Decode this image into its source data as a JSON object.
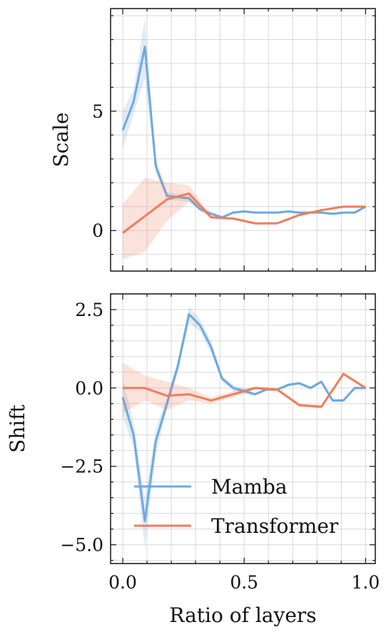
{
  "colors": {
    "mamba": "#6fa8dc",
    "transformer": "#ef7d5c",
    "grid": "#d9d9d9",
    "axes": "#222222"
  },
  "chart_data": [
    {
      "type": "line",
      "title": "",
      "xlabel": "",
      "ylabel": "Scale",
      "xlim": [
        -0.05,
        1.04
      ],
      "ylim": [
        -1.7,
        9.3
      ],
      "xticks": [
        0.0,
        0.5,
        1.0
      ],
      "yticks": [
        0,
        5
      ],
      "ytick_labels": [
        "0",
        "5"
      ],
      "grid": true,
      "series": [
        {
          "name": "Mamba",
          "color_key": "mamba",
          "x": [
            0.0,
            0.045,
            0.091,
            0.136,
            0.182,
            0.227,
            0.273,
            0.318,
            0.364,
            0.409,
            0.455,
            0.5,
            0.545,
            0.591,
            0.636,
            0.682,
            0.727,
            0.773,
            0.818,
            0.864,
            0.909,
            0.955,
            1.0
          ],
          "y": [
            4.2,
            5.4,
            7.7,
            2.7,
            1.45,
            1.4,
            1.35,
            0.9,
            0.7,
            0.55,
            0.75,
            0.8,
            0.75,
            0.75,
            0.75,
            0.8,
            0.75,
            0.75,
            0.75,
            0.7,
            0.75,
            0.75,
            1.0
          ],
          "lower": [
            3.4,
            4.9,
            6.4,
            2.4,
            1.3,
            1.25,
            1.2,
            0.8,
            0.6,
            0.5,
            0.7,
            0.75,
            0.7,
            0.7,
            0.7,
            0.75,
            0.7,
            0.7,
            0.7,
            0.65,
            0.7,
            0.7,
            0.95
          ],
          "upper": [
            5.0,
            5.9,
            8.9,
            3.0,
            1.6,
            1.55,
            1.5,
            1.0,
            0.8,
            0.6,
            0.8,
            0.85,
            0.8,
            0.8,
            0.8,
            0.85,
            0.8,
            0.8,
            0.8,
            0.75,
            0.8,
            0.8,
            1.05
          ]
        },
        {
          "name": "Transformer",
          "color_key": "transformer",
          "x": [
            0.0,
            0.091,
            0.182,
            0.273,
            0.364,
            0.455,
            0.545,
            0.636,
            0.727,
            0.818,
            0.909,
            1.0
          ],
          "y": [
            -0.1,
            0.6,
            1.3,
            1.55,
            0.55,
            0.5,
            0.3,
            0.3,
            0.65,
            0.85,
            1.0,
            1.0
          ],
          "lower": [
            -1.2,
            -0.9,
            0.4,
            1.2,
            0.5,
            0.45,
            0.25,
            0.25,
            0.6,
            0.8,
            0.95,
            0.95
          ],
          "upper": [
            1.1,
            2.2,
            2.0,
            1.9,
            0.6,
            0.55,
            0.35,
            0.35,
            0.7,
            0.9,
            1.05,
            1.05
          ]
        }
      ]
    },
    {
      "type": "line",
      "title": "",
      "xlabel": "Ratio of layers",
      "ylabel": "Shift",
      "xlim": [
        -0.05,
        1.04
      ],
      "ylim": [
        -5.6,
        3.0
      ],
      "xticks": [
        0.0,
        0.5,
        1.0
      ],
      "xtick_labels": [
        "0.0",
        "0.5",
        "1.0"
      ],
      "yticks": [
        -5.0,
        -2.5,
        0.0,
        2.5
      ],
      "ytick_labels": [
        "−5.0",
        "−2.5",
        "0.0",
        "2.5"
      ],
      "grid": true,
      "legend_position": "lower-right",
      "series": [
        {
          "name": "Mamba",
          "color_key": "mamba",
          "x": [
            0.0,
            0.045,
            0.091,
            0.136,
            0.182,
            0.227,
            0.273,
            0.318,
            0.364,
            0.409,
            0.455,
            0.5,
            0.545,
            0.591,
            0.636,
            0.682,
            0.727,
            0.773,
            0.818,
            0.864,
            0.909,
            0.955,
            1.0
          ],
          "y": [
            -0.3,
            -1.5,
            -4.25,
            -1.7,
            -0.5,
            0.7,
            2.35,
            2.0,
            1.3,
            0.3,
            0.0,
            -0.1,
            -0.2,
            -0.05,
            -0.05,
            0.1,
            0.15,
            0.0,
            0.2,
            -0.4,
            -0.4,
            0.0,
            0.0
          ],
          "lower": [
            -0.9,
            -1.9,
            -5.1,
            -2.1,
            -0.7,
            0.5,
            2.1,
            1.8,
            1.1,
            0.2,
            -0.1,
            -0.2,
            -0.25,
            -0.1,
            -0.1,
            0.05,
            0.1,
            -0.05,
            0.15,
            -0.45,
            -0.45,
            -0.05,
            -0.05
          ],
          "upper": [
            0.3,
            -1.1,
            -3.5,
            -1.3,
            -0.3,
            0.9,
            2.6,
            2.2,
            1.5,
            0.4,
            0.1,
            0.0,
            -0.15,
            0.0,
            0.0,
            0.15,
            0.2,
            0.05,
            0.25,
            -0.35,
            -0.35,
            0.05,
            0.05
          ]
        },
        {
          "name": "Transformer",
          "color_key": "transformer",
          "x": [
            0.0,
            0.091,
            0.182,
            0.273,
            0.364,
            0.455,
            0.545,
            0.636,
            0.727,
            0.818,
            0.909,
            1.0
          ],
          "y": [
            0.0,
            0.0,
            -0.25,
            -0.2,
            -0.4,
            -0.2,
            0.0,
            -0.05,
            -0.55,
            -0.6,
            0.45,
            0.0
          ],
          "lower": [
            -0.8,
            -0.4,
            -0.7,
            -0.4,
            -0.5,
            -0.3,
            -0.05,
            -0.1,
            -0.6,
            -0.65,
            0.4,
            -0.05
          ],
          "upper": [
            0.8,
            0.4,
            0.2,
            0.0,
            -0.3,
            -0.1,
            0.05,
            0.0,
            -0.5,
            -0.55,
            0.5,
            0.05
          ]
        }
      ]
    }
  ],
  "legend": {
    "items": [
      {
        "label": "Mamba",
        "color_key": "mamba"
      },
      {
        "label": "Transformer",
        "color_key": "transformer"
      }
    ]
  }
}
